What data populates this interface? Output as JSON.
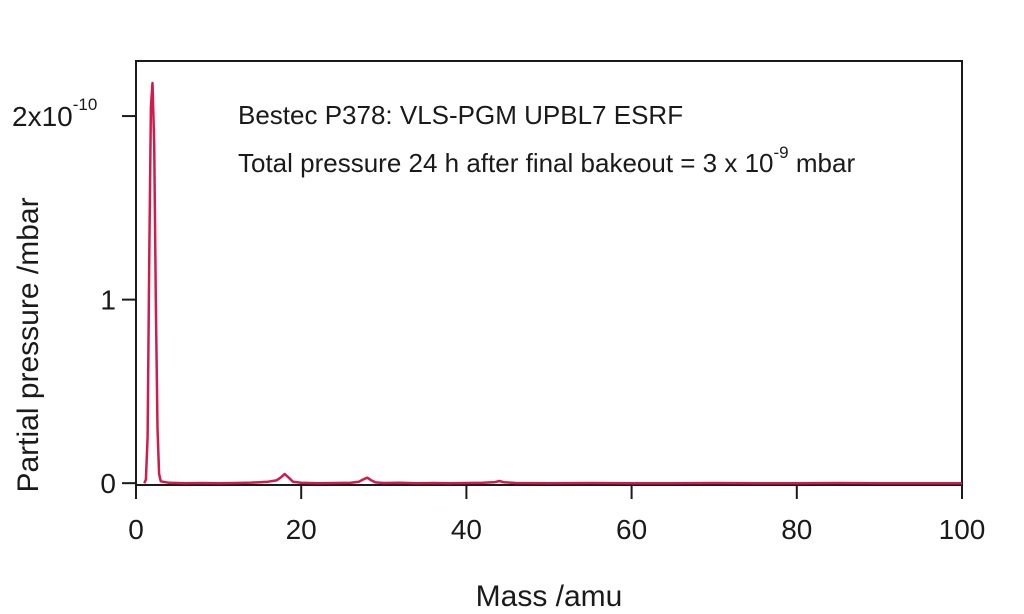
{
  "chart_data": {
    "type": "line",
    "title": "",
    "xlabel": "Mass /amu",
    "ylabel": "Partial pressure /mbar",
    "xlim": [
      0,
      100
    ],
    "ylim": [
      -1e-12,
      2.3e-10
    ],
    "grid": false,
    "x_ticks": [
      0,
      20,
      40,
      60,
      80,
      100
    ],
    "x_tick_labels": [
      "0",
      "20",
      "40",
      "60",
      "80",
      "100"
    ],
    "y_ticks": [
      {
        "value": 0,
        "label": "0",
        "exponent": ""
      },
      {
        "value": 1e-10,
        "label": "1",
        "exponent": ""
      },
      {
        "value": 2e-10,
        "label": "2x10",
        "exponent": "-10"
      }
    ],
    "annotations": {
      "line1": "Bestec P378: VLS-PGM UPBL7 ESRF",
      "line2_prefix": "Total pressure 24 h after final bakeout = 3 x 10",
      "line2_exponent": "-9",
      "line2_suffix": " mbar"
    },
    "series": [
      {
        "color": "#d01c4b",
        "x": [
          1.0,
          1.2,
          1.4,
          1.6,
          1.8,
          2.0,
          2.2,
          2.4,
          2.6,
          2.8,
          3.0,
          4,
          6,
          8,
          10,
          12,
          14,
          15,
          16,
          17,
          17.5,
          18,
          18.5,
          19,
          20,
          22,
          24,
          26,
          27,
          27.5,
          28,
          28.5,
          29,
          30,
          32,
          34,
          36,
          38,
          40,
          42,
          43.5,
          44,
          44.5,
          46,
          50,
          55,
          60,
          65,
          70,
          75,
          80,
          85,
          90,
          95,
          100
        ],
        "y": [
          0.0,
          2e-12,
          2.5e-11,
          1.2e-10,
          2.05e-10,
          2.18e-10,
          1.85e-10,
          1e-10,
          3e-11,
          5e-12,
          1e-12,
          2e-13,
          0.0,
          1e-13,
          0.0,
          1e-13,
          3e-13,
          5e-13,
          8e-13,
          1.5e-12,
          3e-12,
          5e-12,
          3e-12,
          8e-13,
          2e-13,
          0.0,
          1e-13,
          2e-13,
          8e-13,
          2e-12,
          3e-12,
          1.5e-12,
          4e-13,
          1e-13,
          2e-13,
          0.0,
          1e-13,
          0.0,
          1e-13,
          2e-13,
          6e-13,
          1.2e-12,
          5e-13,
          1e-13,
          0.0,
          1e-13,
          0.0,
          0.0,
          1e-13,
          0.0,
          0.0,
          1e-13,
          0.0,
          0.0,
          0.0
        ]
      }
    ]
  }
}
